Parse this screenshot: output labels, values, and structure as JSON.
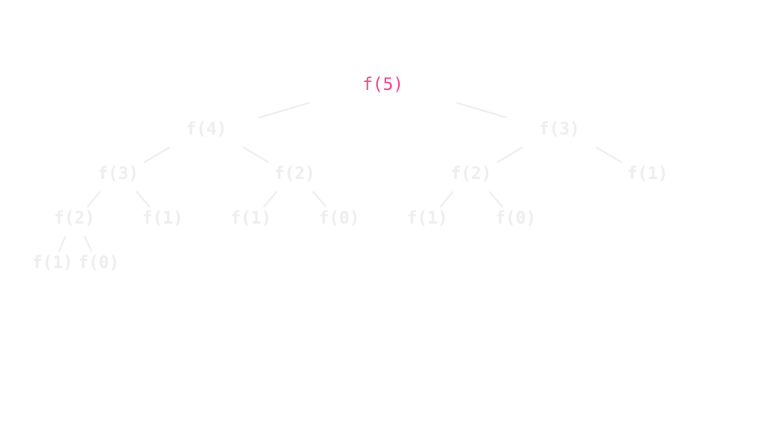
{
  "tree": {
    "root_label": "f(5)",
    "colors": {
      "active": "#ff3f8f",
      "inactive": "#eeeeee",
      "background": "#ffffff"
    },
    "nodes": [
      {
        "id": "n0",
        "label": "f(5)",
        "active": true
      },
      {
        "id": "n1",
        "label": "f(4)",
        "active": false
      },
      {
        "id": "n2",
        "label": "f(3)",
        "active": false
      },
      {
        "id": "n3",
        "label": "f(3)",
        "active": false
      },
      {
        "id": "n4",
        "label": "f(2)",
        "active": false
      },
      {
        "id": "n5",
        "label": "f(2)",
        "active": false
      },
      {
        "id": "n6",
        "label": "f(1)",
        "active": false
      },
      {
        "id": "n7",
        "label": "f(2)",
        "active": false
      },
      {
        "id": "n8",
        "label": "f(1)",
        "active": false
      },
      {
        "id": "n9",
        "label": "f(1)",
        "active": false
      },
      {
        "id": "n10",
        "label": "f(0)",
        "active": false
      },
      {
        "id": "n11",
        "label": "f(1)",
        "active": false
      },
      {
        "id": "n12",
        "label": "f(0)",
        "active": false
      },
      {
        "id": "n13",
        "label": "f(1)",
        "active": false
      },
      {
        "id": "n14",
        "label": "f(0)",
        "active": false
      }
    ],
    "edges": [
      [
        "n0",
        "n1"
      ],
      [
        "n0",
        "n2"
      ],
      [
        "n1",
        "n3"
      ],
      [
        "n1",
        "n4"
      ],
      [
        "n2",
        "n5"
      ],
      [
        "n2",
        "n6"
      ],
      [
        "n3",
        "n7"
      ],
      [
        "n3",
        "n8"
      ],
      [
        "n4",
        "n9"
      ],
      [
        "n4",
        "n10"
      ],
      [
        "n5",
        "n11"
      ],
      [
        "n5",
        "n12"
      ],
      [
        "n7",
        "n13"
      ],
      [
        "n7",
        "n14"
      ]
    ]
  }
}
